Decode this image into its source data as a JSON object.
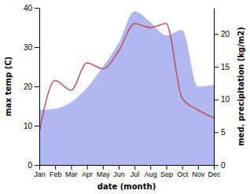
{
  "chart_data": {
    "type": "line",
    "x_label": "date (month)",
    "y_label": "max temp (C)",
    "y2_label": "med. precipitation (kg/m2)",
    "categories": [
      "Jan",
      "Feb",
      "Mar",
      "Apr",
      "May",
      "Jun",
      "Jul",
      "Aug",
      "Sep",
      "Oct",
      "Nov",
      "Dec"
    ],
    "series": [
      {
        "type": "area",
        "axis": "y2",
        "color": "#b0b8f0",
        "values": [
          8.4,
          8.6,
          9.6,
          11.8,
          15,
          18.6,
          23.5,
          21.8,
          19.8,
          20.6,
          12,
          12.2
        ]
      },
      {
        "type": "line",
        "color": "#c0505a",
        "values": [
          8.5,
          21.5,
          19,
          26,
          24.5,
          29,
          36,
          35,
          36,
          17,
          14,
          12
        ]
      }
    ],
    "ylim": [
      0,
      40
    ],
    "yticks": [
      0,
      10,
      20,
      30,
      40
    ],
    "y2lim": [
      0,
      24
    ],
    "y2ticks": [
      0,
      5,
      10,
      15,
      20
    ],
    "grid": false
  }
}
